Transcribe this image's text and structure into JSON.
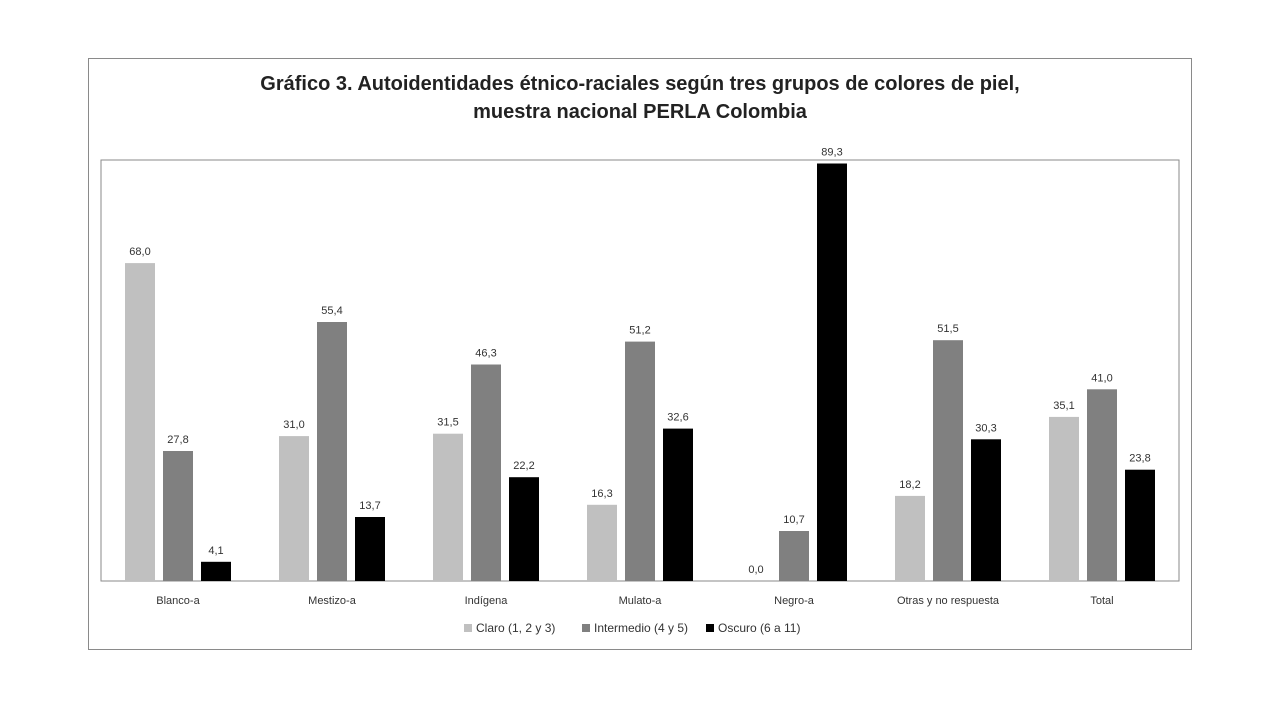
{
  "chart_data": {
    "type": "bar",
    "title_line1": "Gráfico 3. Autoidentidades étnico-raciales  según tres grupos de colores de piel,",
    "title_line2": "muestra nacional PERLA Colombia",
    "categories": [
      "Blanco-a",
      "Mestizo-a",
      "Indígena",
      "Mulato-a",
      "Negro-a",
      "Otras y no respuesta",
      "Total"
    ],
    "series": [
      {
        "name": "Claro (1, 2 y 3)",
        "color": "#c0c0c0",
        "values": [
          68.0,
          31.0,
          31.5,
          16.3,
          0.0,
          18.2,
          35.1
        ]
      },
      {
        "name": "Intermedio (4 y 5)",
        "color": "#808080",
        "values": [
          27.8,
          55.4,
          46.3,
          51.2,
          10.7,
          51.5,
          41.0
        ]
      },
      {
        "name": "Oscuro (6 a 11)",
        "color": "#000000",
        "values": [
          4.1,
          13.7,
          22.2,
          32.6,
          89.3,
          30.3,
          23.8
        ]
      }
    ],
    "data_labels": [
      [
        "68,0",
        "31,0",
        "31,5",
        "16,3",
        "0,0",
        "18,2",
        "35,1"
      ],
      [
        "27,8",
        "55,4",
        "46,3",
        "51,2",
        "10,7",
        "51,5",
        "41,0"
      ],
      [
        "4,1",
        "13,7",
        "22,2",
        "32,6",
        "89,3",
        "30,3",
        "23,8"
      ]
    ],
    "ylim": [
      0,
      90
    ],
    "grid": false,
    "legend_position": "bottom"
  }
}
